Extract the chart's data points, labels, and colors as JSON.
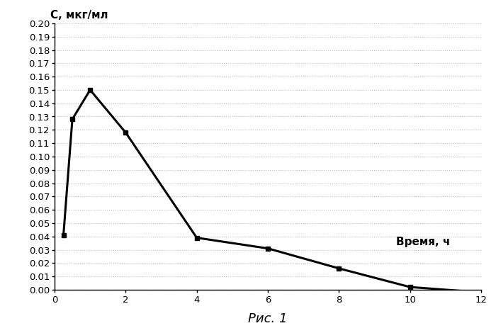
{
  "x": [
    0.25,
    0.5,
    1.0,
    2.0,
    4.0,
    6.0,
    8.0,
    10.0,
    12.0
  ],
  "y": [
    0.041,
    0.128,
    0.15,
    0.118,
    0.039,
    0.031,
    0.016,
    0.002,
    -0.002
  ],
  "xlabel_text": "Рис. 1",
  "ylabel_text": "С, мкг/мл",
  "time_label": "Время, ч",
  "xlim": [
    0,
    12
  ],
  "ylim": [
    0.0,
    0.2
  ],
  "yticks": [
    0.0,
    0.01,
    0.02,
    0.03,
    0.04,
    0.05,
    0.06,
    0.07,
    0.08,
    0.09,
    0.1,
    0.11,
    0.12,
    0.13,
    0.14,
    0.15,
    0.16,
    0.17,
    0.18,
    0.19,
    0.2
  ],
  "xticks": [
    0,
    2,
    4,
    6,
    8,
    10,
    12
  ],
  "line_color": "#000000",
  "marker": "s",
  "marker_size": 5,
  "marker_facecolor": "#000000",
  "grid_color": "#bbbbbb",
  "background_color": "#ffffff",
  "font_family": "DejaVu Sans"
}
